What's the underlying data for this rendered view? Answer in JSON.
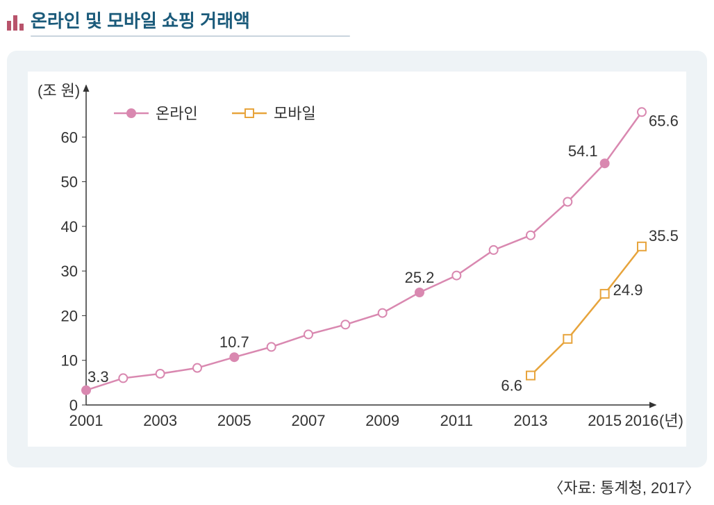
{
  "title": "온라인 및 모바일 쇼핑 거래액",
  "source": "〈자료: 통계청, 2017〉",
  "chart": {
    "type": "line",
    "background_color": "#ffffff",
    "panel_color": "#eef3f6",
    "y_unit": "(조 원)",
    "x_unit": "(년)",
    "x_ticks": [
      "2001",
      "2003",
      "2005",
      "2007",
      "2009",
      "2011",
      "2013",
      "2015",
      "2016"
    ],
    "x_all_years": [
      2001,
      2002,
      2003,
      2004,
      2005,
      2006,
      2007,
      2008,
      2009,
      2010,
      2011,
      2012,
      2013,
      2014,
      2015,
      2016
    ],
    "y_ticks": [
      0,
      10,
      20,
      30,
      40,
      50,
      60
    ],
    "ylim": [
      0,
      70
    ],
    "xlim": [
      2001,
      2016
    ],
    "axis_color": "#333333",
    "series": {
      "online": {
        "label": "온라인",
        "color": "#d988b0",
        "line_width": 2.5,
        "marker": "circle",
        "marker_size": 6,
        "years": [
          2001,
          2002,
          2003,
          2004,
          2005,
          2006,
          2007,
          2008,
          2009,
          2010,
          2011,
          2012,
          2013,
          2014,
          2015,
          2016
        ],
        "values": [
          3.3,
          6.0,
          7.0,
          8.3,
          10.7,
          13.0,
          15.8,
          18.0,
          20.6,
          25.2,
          29.0,
          34.7,
          38.0,
          45.5,
          54.1,
          65.6
        ],
        "filled_points": [
          2001,
          2005,
          2010,
          2015
        ],
        "labeled_points": {
          "2001": "3.3",
          "2005": "10.7",
          "2010": "25.2",
          "2015": "54.1",
          "2016": "65.6"
        }
      },
      "mobile": {
        "label": "모바일",
        "color": "#e7a43c",
        "line_width": 2.5,
        "marker": "square",
        "marker_size": 6,
        "years": [
          2013,
          2014,
          2015,
          2016
        ],
        "values": [
          6.6,
          14.8,
          24.9,
          35.5
        ],
        "filled_points": [],
        "labeled_points": {
          "2013": "6.6",
          "2015": "24.9",
          "2016": "35.5"
        }
      }
    },
    "legend": {
      "position": "top-left",
      "items": [
        "online",
        "mobile"
      ]
    }
  },
  "icon_bar_color": "#b8536b"
}
